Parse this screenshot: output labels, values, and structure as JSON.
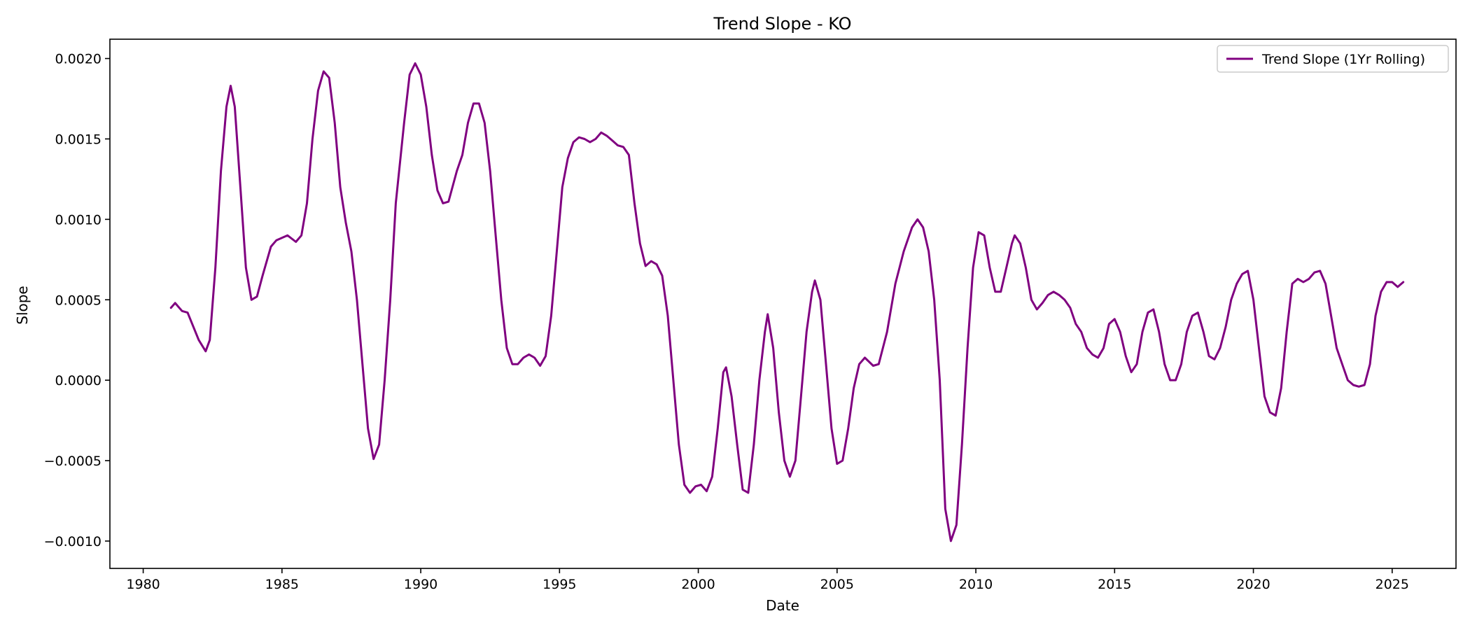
{
  "chart_data": {
    "type": "line",
    "title": "Trend Slope - KO",
    "xlabel": "Date",
    "ylabel": "Slope",
    "xlim": [
      1978.8,
      2027.3
    ],
    "ylim": [
      -0.00117,
      0.00212
    ],
    "x_ticks": [
      1980,
      1985,
      1990,
      1995,
      2000,
      2005,
      2010,
      2015,
      2020,
      2025
    ],
    "x_tick_labels": [
      "1980",
      "1985",
      "1990",
      "1995",
      "2000",
      "2005",
      "2010",
      "2015",
      "2020",
      "2025"
    ],
    "y_ticks": [
      -0.001,
      -0.0005,
      0.0,
      0.0005,
      0.001,
      0.0015,
      0.002
    ],
    "y_tick_labels": [
      "−0.0010",
      "−0.0005",
      "0.0000",
      "0.0005",
      "0.0010",
      "0.0015",
      "0.0020"
    ],
    "grid": false,
    "legend_position": "top-right",
    "series": [
      {
        "name": "Trend Slope (1Yr Rolling)",
        "color": "#800080",
        "points": [
          [
            1981.0,
            0.00045
          ],
          [
            1981.15,
            0.00048
          ],
          [
            1981.4,
            0.00043
          ],
          [
            1981.6,
            0.00042
          ],
          [
            1982.0,
            0.00025
          ],
          [
            1982.25,
            0.00018
          ],
          [
            1982.4,
            0.00025
          ],
          [
            1982.6,
            0.0007
          ],
          [
            1982.8,
            0.0013
          ],
          [
            1983.0,
            0.0017
          ],
          [
            1983.15,
            0.00183
          ],
          [
            1983.3,
            0.0017
          ],
          [
            1983.5,
            0.0012
          ],
          [
            1983.7,
            0.0007
          ],
          [
            1983.9,
            0.0005
          ],
          [
            1984.1,
            0.00052
          ],
          [
            1984.3,
            0.00065
          ],
          [
            1984.6,
            0.00083
          ],
          [
            1984.8,
            0.00087
          ],
          [
            1985.2,
            0.0009
          ],
          [
            1985.5,
            0.00086
          ],
          [
            1985.7,
            0.0009
          ],
          [
            1985.9,
            0.0011
          ],
          [
            1986.1,
            0.0015
          ],
          [
            1986.3,
            0.0018
          ],
          [
            1986.5,
            0.00192
          ],
          [
            1986.7,
            0.00188
          ],
          [
            1986.9,
            0.0016
          ],
          [
            1987.1,
            0.0012
          ],
          [
            1987.3,
            0.00098
          ],
          [
            1987.5,
            0.0008
          ],
          [
            1987.7,
            0.0005
          ],
          [
            1987.9,
            0.0001
          ],
          [
            1988.1,
            -0.0003
          ],
          [
            1988.3,
            -0.00049
          ],
          [
            1988.5,
            -0.0004
          ],
          [
            1988.7,
            0.0
          ],
          [
            1988.9,
            0.0005
          ],
          [
            1989.1,
            0.0011
          ],
          [
            1989.4,
            0.0016
          ],
          [
            1989.6,
            0.0019
          ],
          [
            1989.8,
            0.00197
          ],
          [
            1990.0,
            0.0019
          ],
          [
            1990.2,
            0.0017
          ],
          [
            1990.4,
            0.0014
          ],
          [
            1990.6,
            0.00118
          ],
          [
            1990.8,
            0.0011
          ],
          [
            1991.0,
            0.00111
          ],
          [
            1991.3,
            0.0013
          ],
          [
            1991.5,
            0.0014
          ],
          [
            1991.7,
            0.0016
          ],
          [
            1991.9,
            0.00172
          ],
          [
            1992.1,
            0.00172
          ],
          [
            1992.3,
            0.0016
          ],
          [
            1992.5,
            0.0013
          ],
          [
            1992.7,
            0.0009
          ],
          [
            1992.9,
            0.0005
          ],
          [
            1993.1,
            0.0002
          ],
          [
            1993.3,
            0.0001
          ],
          [
            1993.5,
            0.0001
          ],
          [
            1993.7,
            0.00014
          ],
          [
            1993.9,
            0.00016
          ],
          [
            1994.1,
            0.00014
          ],
          [
            1994.3,
            9e-05
          ],
          [
            1994.5,
            0.00015
          ],
          [
            1994.7,
            0.0004
          ],
          [
            1994.9,
            0.0008
          ],
          [
            1995.1,
            0.0012
          ],
          [
            1995.3,
            0.00138
          ],
          [
            1995.5,
            0.00148
          ],
          [
            1995.7,
            0.00151
          ],
          [
            1995.9,
            0.0015
          ],
          [
            1996.1,
            0.00148
          ],
          [
            1996.3,
            0.0015
          ],
          [
            1996.5,
            0.00154
          ],
          [
            1996.7,
            0.00152
          ],
          [
            1996.9,
            0.00149
          ],
          [
            1997.1,
            0.00146
          ],
          [
            1997.3,
            0.00145
          ],
          [
            1997.5,
            0.0014
          ],
          [
            1997.7,
            0.0011
          ],
          [
            1997.9,
            0.00085
          ],
          [
            1998.1,
            0.00071
          ],
          [
            1998.3,
            0.00074
          ],
          [
            1998.5,
            0.00072
          ],
          [
            1998.7,
            0.00065
          ],
          [
            1998.9,
            0.0004
          ],
          [
            1999.1,
            0.0
          ],
          [
            1999.3,
            -0.0004
          ],
          [
            1999.5,
            -0.00065
          ],
          [
            1999.7,
            -0.0007
          ],
          [
            1999.9,
            -0.00066
          ],
          [
            2000.1,
            -0.00065
          ],
          [
            2000.3,
            -0.00069
          ],
          [
            2000.5,
            -0.0006
          ],
          [
            2000.7,
            -0.0003
          ],
          [
            2000.9,
            5e-05
          ],
          [
            2001.0,
            8e-05
          ],
          [
            2001.2,
            -0.0001
          ],
          [
            2001.4,
            -0.0004
          ],
          [
            2001.6,
            -0.00068
          ],
          [
            2001.8,
            -0.0007
          ],
          [
            2002.0,
            -0.0004
          ],
          [
            2002.2,
            0.0
          ],
          [
            2002.4,
            0.0003
          ],
          [
            2002.5,
            0.00041
          ],
          [
            2002.7,
            0.0002
          ],
          [
            2002.9,
            -0.0002
          ],
          [
            2003.1,
            -0.0005
          ],
          [
            2003.3,
            -0.0006
          ],
          [
            2003.5,
            -0.0005
          ],
          [
            2003.7,
            -0.0001
          ],
          [
            2003.9,
            0.0003
          ],
          [
            2004.1,
            0.00055
          ],
          [
            2004.2,
            0.00062
          ],
          [
            2004.4,
            0.0005
          ],
          [
            2004.6,
            0.0001
          ],
          [
            2004.8,
            -0.0003
          ],
          [
            2005.0,
            -0.00052
          ],
          [
            2005.2,
            -0.0005
          ],
          [
            2005.4,
            -0.0003
          ],
          [
            2005.6,
            -5e-05
          ],
          [
            2005.8,
            0.0001
          ],
          [
            2006.0,
            0.00014
          ],
          [
            2006.3,
            9e-05
          ],
          [
            2006.5,
            0.0001
          ],
          [
            2006.8,
            0.0003
          ],
          [
            2007.1,
            0.0006
          ],
          [
            2007.4,
            0.0008
          ],
          [
            2007.7,
            0.00095
          ],
          [
            2007.9,
            0.001
          ],
          [
            2008.1,
            0.00095
          ],
          [
            2008.3,
            0.0008
          ],
          [
            2008.5,
            0.0005
          ],
          [
            2008.7,
            0.0
          ],
          [
            2008.9,
            -0.0008
          ],
          [
            2009.1,
            -0.001
          ],
          [
            2009.3,
            -0.0009
          ],
          [
            2009.5,
            -0.0004
          ],
          [
            2009.7,
            0.0002
          ],
          [
            2009.9,
            0.0007
          ],
          [
            2010.1,
            0.00092
          ],
          [
            2010.3,
            0.0009
          ],
          [
            2010.5,
            0.0007
          ],
          [
            2010.7,
            0.00055
          ],
          [
            2010.9,
            0.00055
          ],
          [
            2011.1,
            0.0007
          ],
          [
            2011.3,
            0.00085
          ],
          [
            2011.4,
            0.0009
          ],
          [
            2011.6,
            0.00085
          ],
          [
            2011.8,
            0.0007
          ],
          [
            2012.0,
            0.0005
          ],
          [
            2012.2,
            0.00044
          ],
          [
            2012.4,
            0.00048
          ],
          [
            2012.6,
            0.00053
          ],
          [
            2012.8,
            0.00055
          ],
          [
            2013.0,
            0.00053
          ],
          [
            2013.2,
            0.0005
          ],
          [
            2013.4,
            0.00045
          ],
          [
            2013.6,
            0.00035
          ],
          [
            2013.8,
            0.0003
          ],
          [
            2014.0,
            0.0002
          ],
          [
            2014.2,
            0.00016
          ],
          [
            2014.4,
            0.00014
          ],
          [
            2014.6,
            0.0002
          ],
          [
            2014.8,
            0.00035
          ],
          [
            2015.0,
            0.00038
          ],
          [
            2015.2,
            0.0003
          ],
          [
            2015.4,
            0.00015
          ],
          [
            2015.6,
            5e-05
          ],
          [
            2015.8,
            0.0001
          ],
          [
            2016.0,
            0.0003
          ],
          [
            2016.2,
            0.00042
          ],
          [
            2016.4,
            0.00044
          ],
          [
            2016.6,
            0.0003
          ],
          [
            2016.8,
            0.0001
          ],
          [
            2017.0,
            0.0
          ],
          [
            2017.2,
            0.0
          ],
          [
            2017.4,
            0.0001
          ],
          [
            2017.6,
            0.0003
          ],
          [
            2017.8,
            0.0004
          ],
          [
            2018.0,
            0.00042
          ],
          [
            2018.2,
            0.0003
          ],
          [
            2018.4,
            0.00015
          ],
          [
            2018.6,
            0.00013
          ],
          [
            2018.8,
            0.0002
          ],
          [
            2019.0,
            0.00033
          ],
          [
            2019.2,
            0.0005
          ],
          [
            2019.4,
            0.0006
          ],
          [
            2019.6,
            0.00066
          ],
          [
            2019.8,
            0.00068
          ],
          [
            2020.0,
            0.0005
          ],
          [
            2020.2,
            0.0002
          ],
          [
            2020.4,
            -0.0001
          ],
          [
            2020.6,
            -0.0002
          ],
          [
            2020.8,
            -0.00022
          ],
          [
            2021.0,
            -5e-05
          ],
          [
            2021.2,
            0.0003
          ],
          [
            2021.4,
            0.0006
          ],
          [
            2021.6,
            0.00063
          ],
          [
            2021.8,
            0.00061
          ],
          [
            2022.0,
            0.00063
          ],
          [
            2022.2,
            0.00067
          ],
          [
            2022.4,
            0.00068
          ],
          [
            2022.6,
            0.0006
          ],
          [
            2022.8,
            0.0004
          ],
          [
            2023.0,
            0.0002
          ],
          [
            2023.2,
            0.0001
          ],
          [
            2023.4,
            0.0
          ],
          [
            2023.6,
            -3e-05
          ],
          [
            2023.8,
            -4e-05
          ],
          [
            2024.0,
            -3e-05
          ],
          [
            2024.2,
            0.0001
          ],
          [
            2024.4,
            0.0004
          ],
          [
            2024.6,
            0.00055
          ],
          [
            2024.8,
            0.00061
          ],
          [
            2025.0,
            0.00061
          ],
          [
            2025.2,
            0.00058
          ],
          [
            2025.4,
            0.00061
          ]
        ]
      }
    ]
  }
}
